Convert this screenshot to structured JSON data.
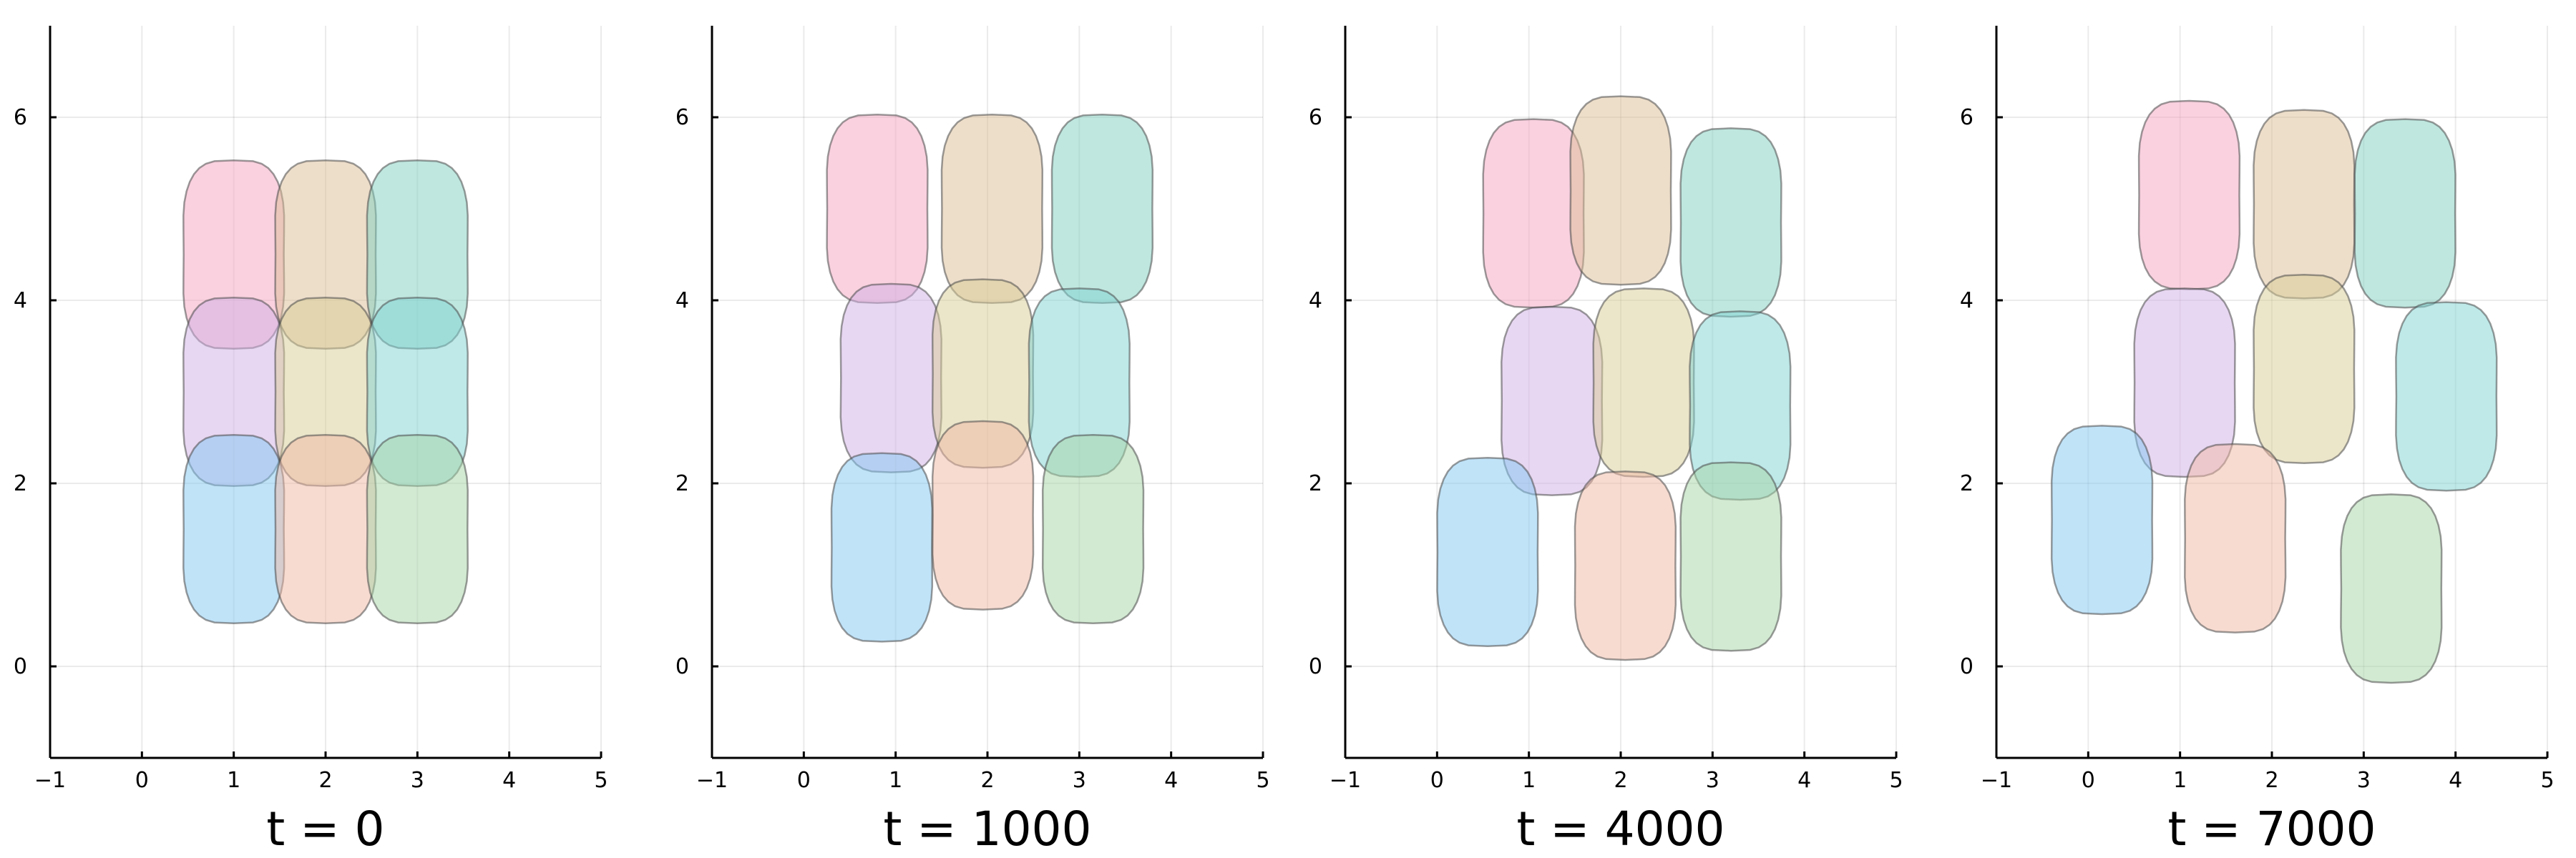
{
  "chart_data": [
    {
      "type": "scatter",
      "title": "t = 0",
      "xlim": [
        -1,
        5
      ],
      "ylim": [
        -1,
        7
      ],
      "xticks": [
        -1,
        0,
        1,
        2,
        3,
        4,
        5
      ],
      "yticks": [
        0,
        2,
        4,
        6
      ],
      "grid": true,
      "legend": "none",
      "cells": [
        {
          "color": "#f4a3c0",
          "x": 1.0,
          "y": 4.5
        },
        {
          "color": "#dcbe96",
          "x": 2.0,
          "y": 4.5
        },
        {
          "color": "#80d0c0",
          "x": 3.0,
          "y": 4.5
        },
        {
          "color": "#d1b0e6",
          "x": 1.0,
          "y": 3.0
        },
        {
          "color": "#d8cc96",
          "x": 2.0,
          "y": 3.0
        },
        {
          "color": "#80d4d4",
          "x": 3.0,
          "y": 3.0
        },
        {
          "color": "#82c8f2",
          "x": 1.0,
          "y": 1.5
        },
        {
          "color": "#f0b8a4",
          "x": 2.0,
          "y": 1.5
        },
        {
          "color": "#a6d4a6",
          "x": 3.0,
          "y": 1.5
        }
      ]
    },
    {
      "type": "scatter",
      "title": "t = 1000",
      "xlim": [
        -1,
        5
      ],
      "ylim": [
        -1,
        7
      ],
      "xticks": [
        -1,
        0,
        1,
        2,
        3,
        4,
        5
      ],
      "yticks": [
        0,
        2,
        4,
        6
      ],
      "grid": true,
      "legend": "none",
      "cells": [
        {
          "color": "#f4a3c0",
          "x": 0.8,
          "y": 5.0
        },
        {
          "color": "#dcbe96",
          "x": 2.05,
          "y": 5.0
        },
        {
          "color": "#80d0c0",
          "x": 3.25,
          "y": 5.0
        },
        {
          "color": "#d1b0e6",
          "x": 0.95,
          "y": 3.15
        },
        {
          "color": "#d8cc96",
          "x": 1.95,
          "y": 3.2
        },
        {
          "color": "#80d4d4",
          "x": 3.0,
          "y": 3.1
        },
        {
          "color": "#82c8f2",
          "x": 0.85,
          "y": 1.3
        },
        {
          "color": "#f0b8a4",
          "x": 1.95,
          "y": 1.65
        },
        {
          "color": "#a6d4a6",
          "x": 3.15,
          "y": 1.5
        }
      ]
    },
    {
      "type": "scatter",
      "title": "t = 4000",
      "xlim": [
        -1,
        5
      ],
      "ylim": [
        -1,
        7
      ],
      "xticks": [
        -1,
        0,
        1,
        2,
        3,
        4,
        5
      ],
      "yticks": [
        0,
        2,
        4,
        6
      ],
      "grid": true,
      "legend": "none",
      "cells": [
        {
          "color": "#f4a3c0",
          "x": 1.05,
          "y": 4.95
        },
        {
          "color": "#dcbe96",
          "x": 2.0,
          "y": 5.2
        },
        {
          "color": "#80d0c0",
          "x": 3.2,
          "y": 4.85
        },
        {
          "color": "#d1b0e6",
          "x": 1.25,
          "y": 2.9
        },
        {
          "color": "#d8cc96",
          "x": 2.25,
          "y": 3.1
        },
        {
          "color": "#80d4d4",
          "x": 3.3,
          "y": 2.85
        },
        {
          "color": "#82c8f2",
          "x": 0.55,
          "y": 1.25
        },
        {
          "color": "#f0b8a4",
          "x": 2.05,
          "y": 1.1
        },
        {
          "color": "#a6d4a6",
          "x": 3.2,
          "y": 1.2
        }
      ]
    },
    {
      "type": "scatter",
      "title": "t = 7000",
      "xlim": [
        -1,
        5
      ],
      "ylim": [
        -1,
        7
      ],
      "xticks": [
        -1,
        0,
        1,
        2,
        3,
        4,
        5
      ],
      "yticks": [
        0,
        2,
        4,
        6
      ],
      "grid": true,
      "legend": "none",
      "cells": [
        {
          "color": "#f4a3c0",
          "x": 1.1,
          "y": 5.15
        },
        {
          "color": "#dcbe96",
          "x": 2.35,
          "y": 5.05
        },
        {
          "color": "#80d0c0",
          "x": 3.45,
          "y": 4.95
        },
        {
          "color": "#d1b0e6",
          "x": 1.05,
          "y": 3.1
        },
        {
          "color": "#d8cc96",
          "x": 2.35,
          "y": 3.25
        },
        {
          "color": "#80d4d4",
          "x": 3.9,
          "y": 2.95
        },
        {
          "color": "#82c8f2",
          "x": 0.15,
          "y": 1.6
        },
        {
          "color": "#f0b8a4",
          "x": 1.6,
          "y": 1.4
        },
        {
          "color": "#a6d4a6",
          "x": 3.3,
          "y": 0.85
        }
      ]
    }
  ]
}
